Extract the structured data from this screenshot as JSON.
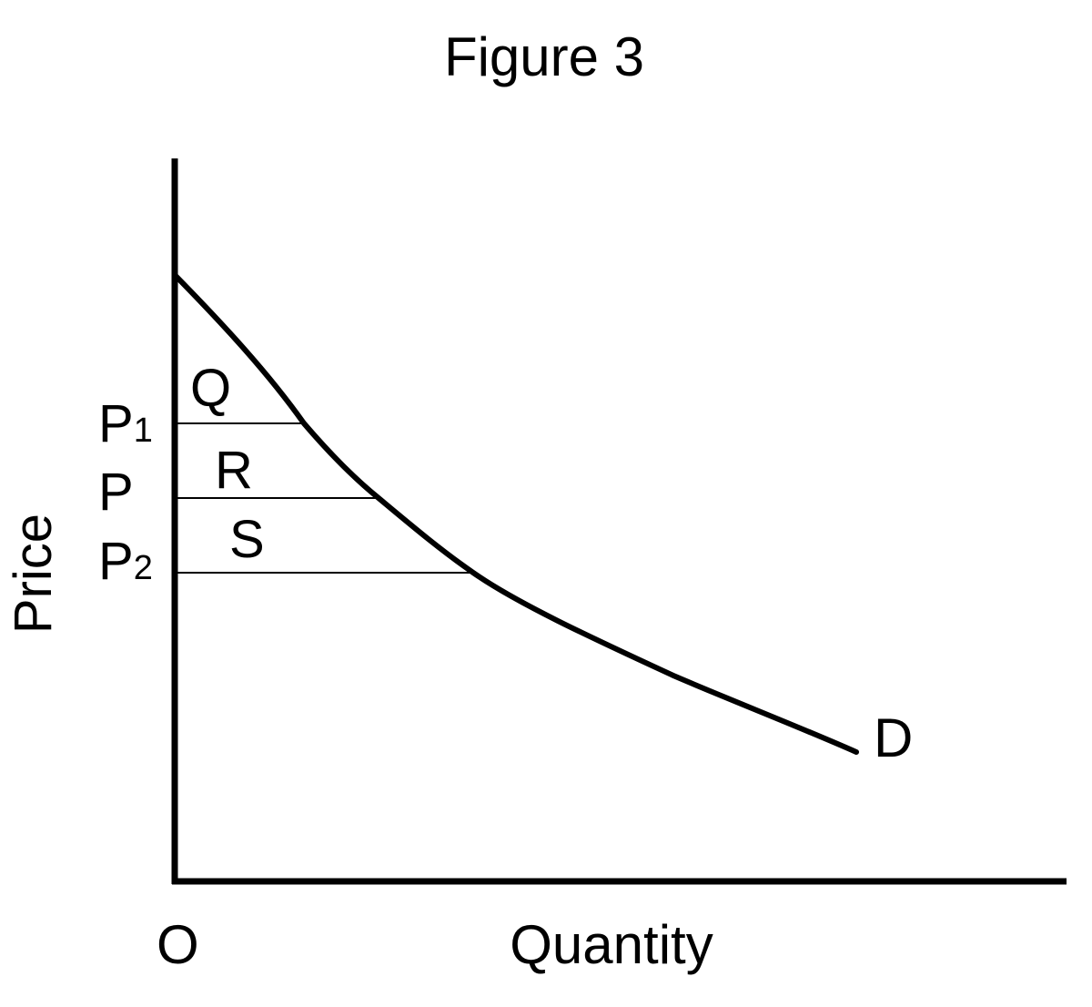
{
  "title": "Figure 3",
  "axes": {
    "y_label": "Price",
    "x_label": "Quantity",
    "origin_label": "O"
  },
  "price_levels": [
    {
      "name": "P",
      "sub": "1"
    },
    {
      "name": "P",
      "sub": ""
    },
    {
      "name": "P",
      "sub": "2"
    }
  ],
  "regions": [
    "Q",
    "R",
    "S"
  ],
  "curve_label": "D",
  "colors": {
    "line": "#000000",
    "background": "#ffffff"
  }
}
